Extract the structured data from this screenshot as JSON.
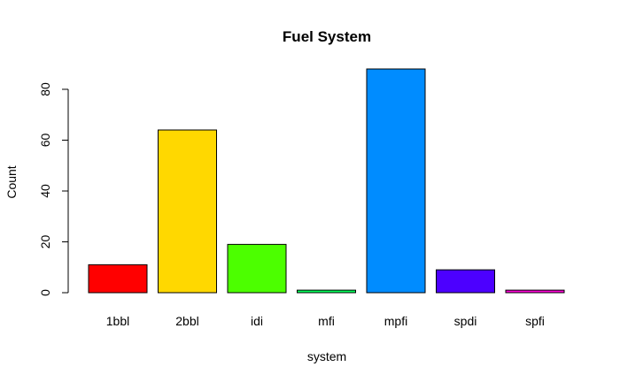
{
  "chart_data": {
    "type": "bar",
    "title": "Fuel System",
    "xlabel": "system",
    "ylabel": "Count",
    "categories": [
      "1bbl",
      "2bbl",
      "idi",
      "mfi",
      "mpfi",
      "spdi",
      "spfi"
    ],
    "values": [
      11,
      64,
      19,
      1,
      88,
      9,
      1
    ],
    "colors": [
      "#ff0000",
      "#ffd800",
      "#4cff00",
      "#00ff5a",
      "#008cff",
      "#4c00ff",
      "#ff00d8"
    ],
    "yticks": [
      0,
      20,
      40,
      60,
      80
    ],
    "ylim": [
      0,
      88
    ],
    "grid": false,
    "legend": "none"
  }
}
